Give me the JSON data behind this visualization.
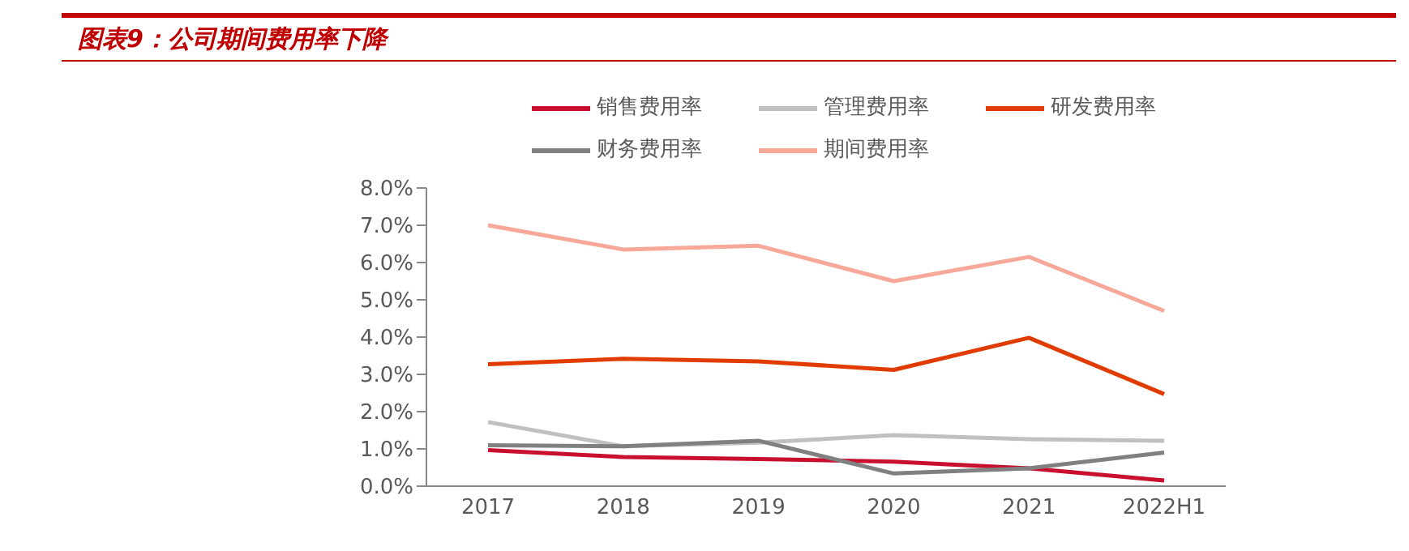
{
  "chart_data": {
    "type": "line",
    "title": "图表9：公司期间费用率下降",
    "categories": [
      "2017",
      "2018",
      "2019",
      "2020",
      "2021",
      "2022H1"
    ],
    "series": [
      {
        "name": "销售费用率",
        "color": "#c8102e",
        "values": [
          0.97,
          0.78,
          0.73,
          0.66,
          0.48,
          0.15
        ]
      },
      {
        "name": "管理费用率",
        "color": "#c0c0c0",
        "values": [
          1.72,
          1.07,
          1.17,
          1.37,
          1.26,
          1.22
        ]
      },
      {
        "name": "研发费用率",
        "color": "#e03c00",
        "values": [
          3.27,
          3.42,
          3.35,
          3.12,
          3.98,
          2.47
        ]
      },
      {
        "name": "财务费用率",
        "color": "#808080",
        "values": [
          1.1,
          1.07,
          1.22,
          0.34,
          0.48,
          0.9
        ]
      },
      {
        "name": "期间费用率",
        "color": "#f8a898",
        "values": [
          7.0,
          6.35,
          6.45,
          5.5,
          6.15,
          4.7
        ]
      }
    ],
    "ylim": [
      0,
      8
    ],
    "yticks": [
      {
        "value": 0,
        "label": "0.0%"
      },
      {
        "value": 1,
        "label": "1.0%"
      },
      {
        "value": 2,
        "label": "2.0%"
      },
      {
        "value": 3,
        "label": "3.0%"
      },
      {
        "value": 4,
        "label": "4.0%"
      },
      {
        "value": 5,
        "label": "5.0%"
      },
      {
        "value": 6,
        "label": "6.0%"
      },
      {
        "value": 7,
        "label": "7.0%"
      },
      {
        "value": 8,
        "label": "8.0%"
      }
    ],
    "grid": false,
    "legend": "top",
    "marker": "none",
    "line_style": "solid"
  }
}
